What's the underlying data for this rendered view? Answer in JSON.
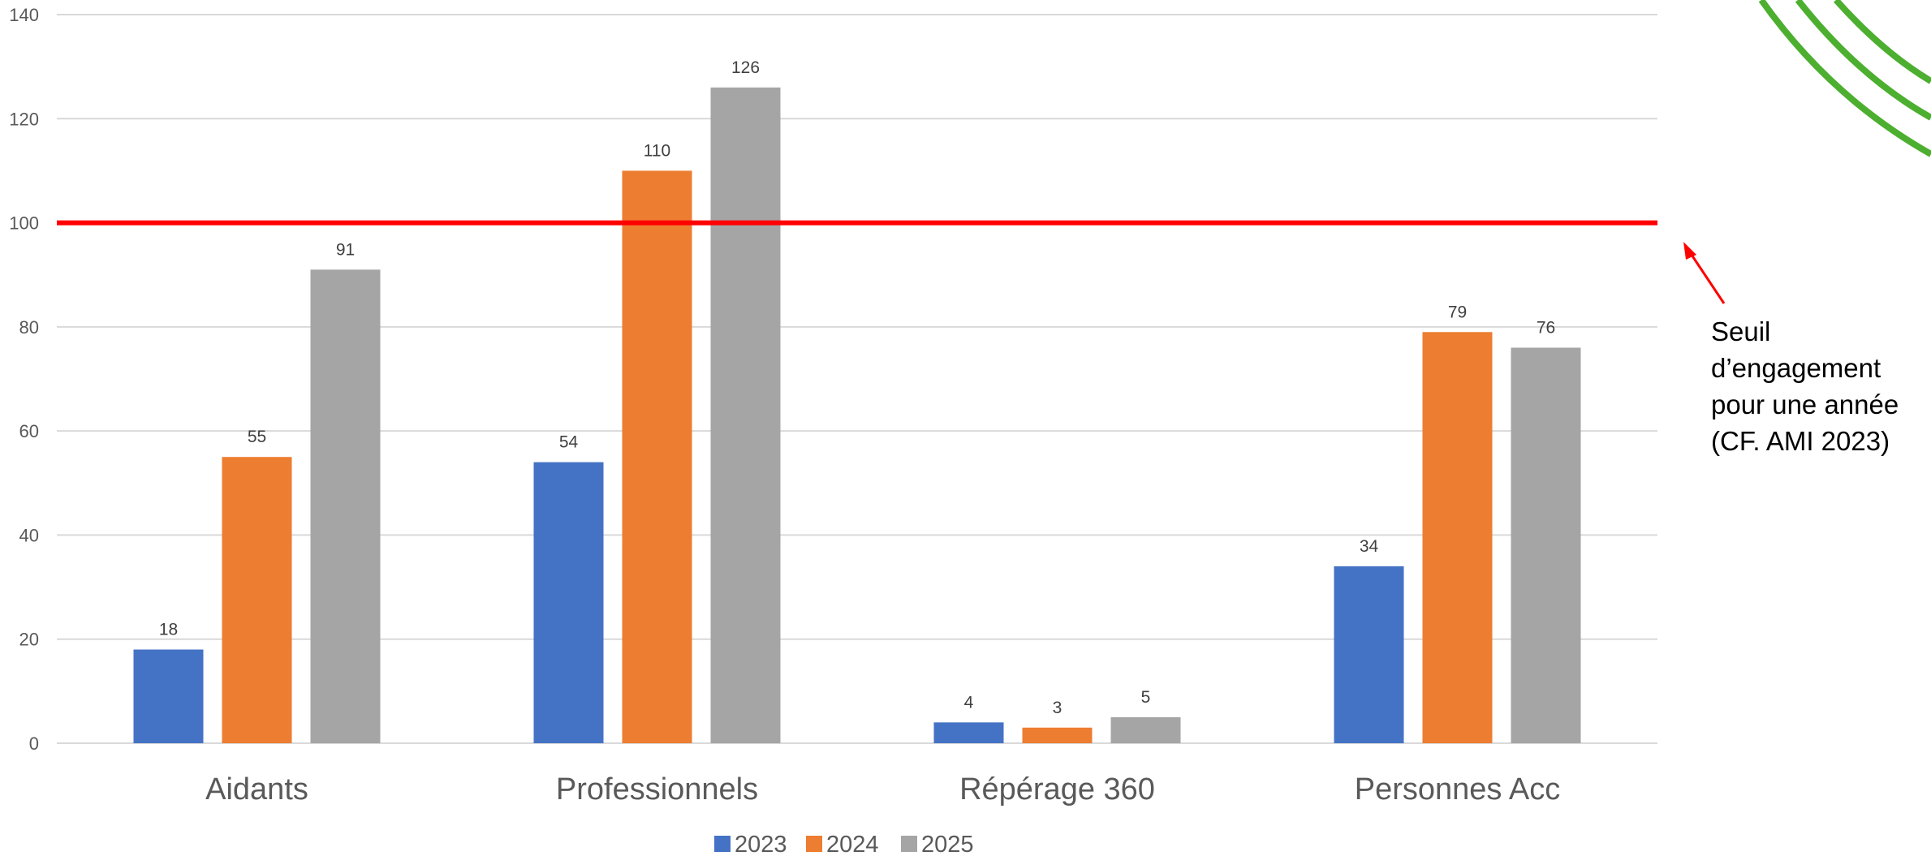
{
  "chart_data": {
    "type": "bar",
    "categories": [
      "Aidants",
      "Professionnels",
      "Répérage 360",
      "Personnes Acc"
    ],
    "series": [
      {
        "name": "2023",
        "values": [
          18,
          54,
          4,
          34
        ]
      },
      {
        "name": "2024",
        "values": [
          55,
          110,
          3,
          79
        ]
      },
      {
        "name": "2025",
        "values": [
          91,
          126,
          5,
          76
        ]
      }
    ],
    "ylim": [
      0,
      140
    ],
    "yticks": [
      0,
      20,
      40,
      60,
      80,
      100,
      120,
      140
    ],
    "grid": true,
    "legend": "bottom-center",
    "threshold": {
      "value": 100,
      "color": "#ff0000",
      "annotation_lines": [
        "Seuil",
        "d’engagement",
        "pour une année",
        "(CF. AMI 2023)"
      ]
    },
    "colors": {
      "series": [
        "#4472c4",
        "#ed7d31",
        "#a5a5a5"
      ],
      "grid": "#d9d9d9",
      "threshold": "#ff0000",
      "decoration": "#4caf2f"
    }
  }
}
